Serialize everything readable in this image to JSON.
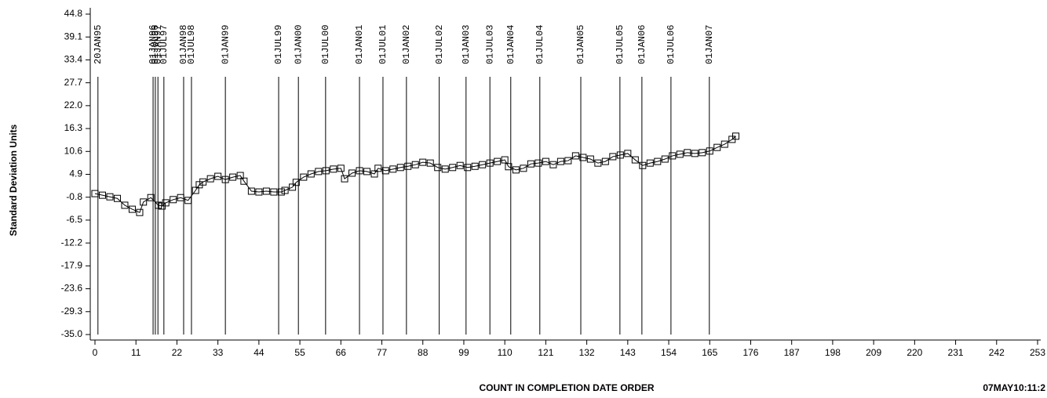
{
  "chart_data": {
    "type": "line",
    "y_label": "Standard Deviation Units",
    "x_label": "COUNT IN COMPLETION DATE ORDER",
    "footnote": "07MAY10:11:2",
    "color": "#000000",
    "marker": "square",
    "xlim": [
      0,
      253
    ],
    "xticks": [
      0,
      11,
      22,
      33,
      44,
      55,
      66,
      77,
      88,
      99,
      110,
      121,
      132,
      143,
      154,
      165,
      176,
      187,
      198,
      209,
      220,
      231,
      242,
      253
    ],
    "ylim": [
      -35,
      44.8
    ],
    "yticks": [
      44.8,
      39.1,
      33.4,
      27.7,
      {
        "value": 22,
        "label": "22.0"
      },
      16.3,
      10.6,
      4.9,
      -0.8,
      -6.5,
      -12.2,
      -17.9,
      -23.6,
      -29.3,
      {
        "value": -35,
        "label": "-35.0"
      }
    ],
    "reference_lines": [
      {
        "x": 0.8,
        "label": "20JAN95"
      },
      {
        "x": 15.6,
        "label": "01JAN96"
      },
      {
        "x": 16.2,
        "label": "01JUL96"
      },
      {
        "x": 16.9,
        "label": "01JAN97"
      },
      {
        "x": 18.5,
        "label": "01JUL97"
      },
      {
        "x": 23.8,
        "label": "01JAN98"
      },
      {
        "x": 25.9,
        "label": "01JUL98"
      },
      {
        "x": 35.0,
        "label": "01JAN99"
      },
      {
        "x": 49.3,
        "label": "01JUL99"
      },
      {
        "x": 54.6,
        "label": "01JAN00"
      },
      {
        "x": 61.9,
        "label": "01JUL00"
      },
      {
        "x": 71.0,
        "label": "01JAN01"
      },
      {
        "x": 77.3,
        "label": "01JUL01"
      },
      {
        "x": 83.6,
        "label": "01JAN02"
      },
      {
        "x": 92.4,
        "label": "01JUL02"
      },
      {
        "x": 99.6,
        "label": "01JAN03"
      },
      {
        "x": 106.0,
        "label": "01JUL03"
      },
      {
        "x": 111.6,
        "label": "01JAN04"
      },
      {
        "x": 119.4,
        "label": "01JUL04"
      },
      {
        "x": 130.4,
        "label": "01JAN05"
      },
      {
        "x": 140.9,
        "label": "01JUL05"
      },
      {
        "x": 146.8,
        "label": "01JAN06"
      },
      {
        "x": 154.6,
        "label": "01JUL06"
      },
      {
        "x": 164.9,
        "label": "01JAN07"
      }
    ],
    "x": [
      0,
      2,
      4,
      6,
      8,
      10,
      12,
      13,
      15,
      17,
      18,
      19,
      21,
      23,
      25,
      27,
      28,
      29,
      31,
      33,
      35,
      37,
      39,
      40,
      42,
      44,
      46,
      48,
      50,
      51,
      53,
      54,
      56,
      58,
      60,
      62,
      64,
      66,
      67,
      69,
      71,
      73,
      75,
      76,
      78,
      80,
      82,
      84,
      86,
      88,
      90,
      92,
      94,
      96,
      98,
      100,
      102,
      104,
      106,
      108,
      110,
      111,
      113,
      115,
      117,
      119,
      121,
      123,
      125,
      127,
      129,
      131,
      133,
      135,
      137,
      139,
      141,
      143,
      145,
      147,
      149,
      151,
      153,
      155,
      157,
      159,
      161,
      163,
      165,
      167,
      169,
      171,
      172
    ],
    "values": [
      0.1,
      -0.3,
      -0.7,
      -1.1,
      -2.8,
      -3.8,
      -4.6,
      -2.0,
      -0.9,
      -2.8,
      -3.0,
      -2.2,
      -1.4,
      -0.9,
      -1.6,
      0.9,
      2.3,
      3.0,
      3.8,
      4.4,
      3.6,
      4.2,
      4.6,
      3.2,
      0.7,
      0.5,
      0.7,
      0.5,
      0.5,
      0.9,
      1.7,
      2.9,
      4.2,
      5.0,
      5.6,
      5.8,
      6.2,
      6.4,
      3.8,
      5.2,
      5.8,
      5.6,
      5.0,
      6.4,
      5.8,
      6.2,
      6.6,
      6.9,
      7.3,
      7.9,
      7.7,
      6.6,
      6.2,
      6.6,
      7.1,
      6.6,
      6.9,
      7.3,
      7.7,
      8.1,
      8.5,
      6.8,
      6.0,
      6.4,
      7.5,
      7.7,
      8.1,
      7.3,
      8.1,
      8.3,
      9.5,
      9.1,
      8.7,
      7.7,
      8.1,
      9.3,
      9.7,
      10.1,
      8.5,
      7.1,
      7.7,
      8.1,
      8.7,
      9.5,
      9.9,
      10.3,
      10.1,
      10.3,
      10.7,
      11.6,
      12.4,
      13.6,
      14.4
    ]
  }
}
